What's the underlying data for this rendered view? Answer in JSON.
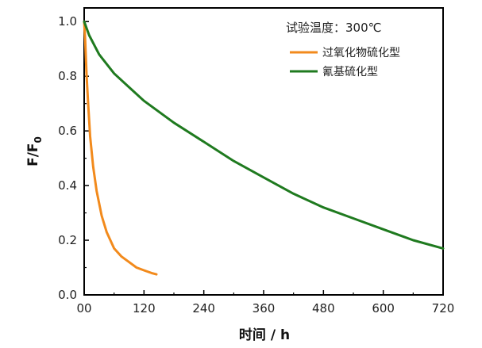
{
  "chart_data": {
    "type": "line",
    "xlabel": "时间 / h",
    "ylabel_main": "F/F",
    "ylabel_sub": "0",
    "annotation": "试验温度：300℃",
    "xlim": [
      0,
      720
    ],
    "ylim": [
      0,
      1.05
    ],
    "x_ticks": [
      0,
      120,
      240,
      360,
      480,
      600,
      720
    ],
    "x_tick_labels": [
      "00",
      "120",
      "240",
      "360",
      "480",
      "600",
      "720"
    ],
    "y_ticks": [
      0.0,
      0.2,
      0.4,
      0.6,
      0.8,
      1.0
    ],
    "y_tick_labels": [
      "0.0",
      "0.2",
      "0.4",
      "0.6",
      "0.8",
      "1.0"
    ],
    "legend_position": "top-right",
    "series": [
      {
        "name": "过氧化物硫化型",
        "color": "#f28a1c",
        "points": [
          [
            0,
            1.0
          ],
          [
            2,
            0.93
          ],
          [
            5,
            0.8
          ],
          [
            8,
            0.7
          ],
          [
            12,
            0.58
          ],
          [
            18,
            0.47
          ],
          [
            25,
            0.38
          ],
          [
            35,
            0.29
          ],
          [
            45,
            0.23
          ],
          [
            60,
            0.17
          ],
          [
            75,
            0.14
          ],
          [
            90,
            0.12
          ],
          [
            105,
            0.1
          ],
          [
            120,
            0.09
          ],
          [
            135,
            0.08
          ],
          [
            145,
            0.075
          ]
        ]
      },
      {
        "name": "氰基硫化型",
        "color": "#1f7a1f",
        "points": [
          [
            0,
            1.0
          ],
          [
            10,
            0.95
          ],
          [
            30,
            0.88
          ],
          [
            60,
            0.81
          ],
          [
            90,
            0.76
          ],
          [
            120,
            0.71
          ],
          [
            180,
            0.63
          ],
          [
            240,
            0.56
          ],
          [
            300,
            0.49
          ],
          [
            360,
            0.43
          ],
          [
            420,
            0.37
          ],
          [
            480,
            0.32
          ],
          [
            540,
            0.28
          ],
          [
            600,
            0.24
          ],
          [
            660,
            0.2
          ],
          [
            720,
            0.17
          ]
        ]
      }
    ]
  }
}
